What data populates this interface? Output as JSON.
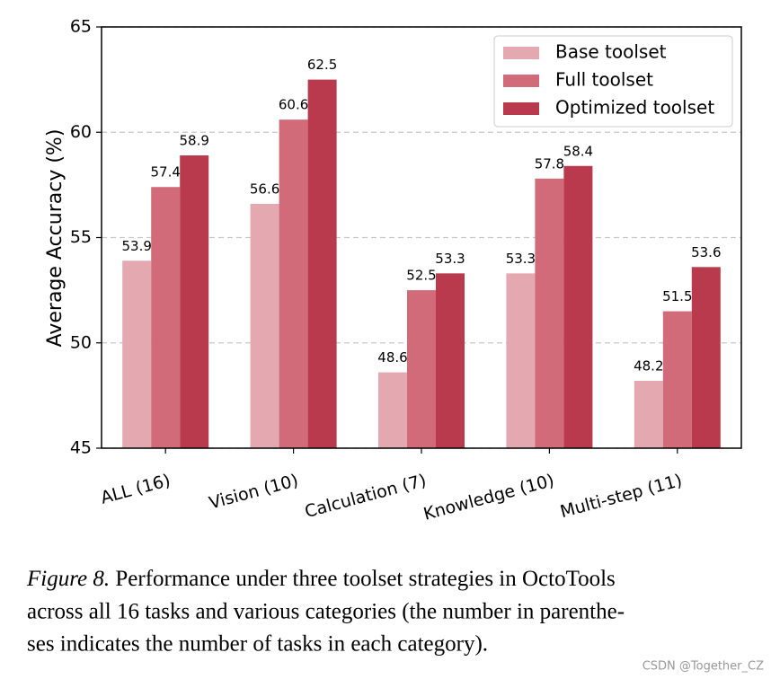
{
  "chart_data": {
    "type": "bar",
    "ylabel": "Average Accuracy (%)",
    "categories": [
      "ALL (16)",
      "Vision (10)",
      "Calculation (7)",
      "Knowledge (10)",
      "Multi-step (11)"
    ],
    "series": [
      {
        "name": "Base toolset",
        "color": "#e3a8b0",
        "values": [
          53.9,
          56.6,
          48.6,
          53.3,
          48.2
        ]
      },
      {
        "name": "Full toolset",
        "color": "#d16b7a",
        "values": [
          57.4,
          60.6,
          52.5,
          57.8,
          51.5
        ]
      },
      {
        "name": "Optimized toolset",
        "color": "#b83a4c",
        "values": [
          58.9,
          62.5,
          53.3,
          58.4,
          53.6
        ]
      }
    ],
    "ylim": [
      45,
      65
    ],
    "yticks": [
      45,
      50,
      55,
      60,
      65
    ],
    "grid": true,
    "legend": "upper right"
  },
  "caption": {
    "label": "Figure 8.",
    "lines": [
      "Performance under three toolset strategies in OctoTools",
      "across all 16 tasks and various categories (the number in parenthe-",
      "ses indicates the number of tasks in each category)."
    ]
  },
  "watermark": "CSDN @Together_CZ"
}
